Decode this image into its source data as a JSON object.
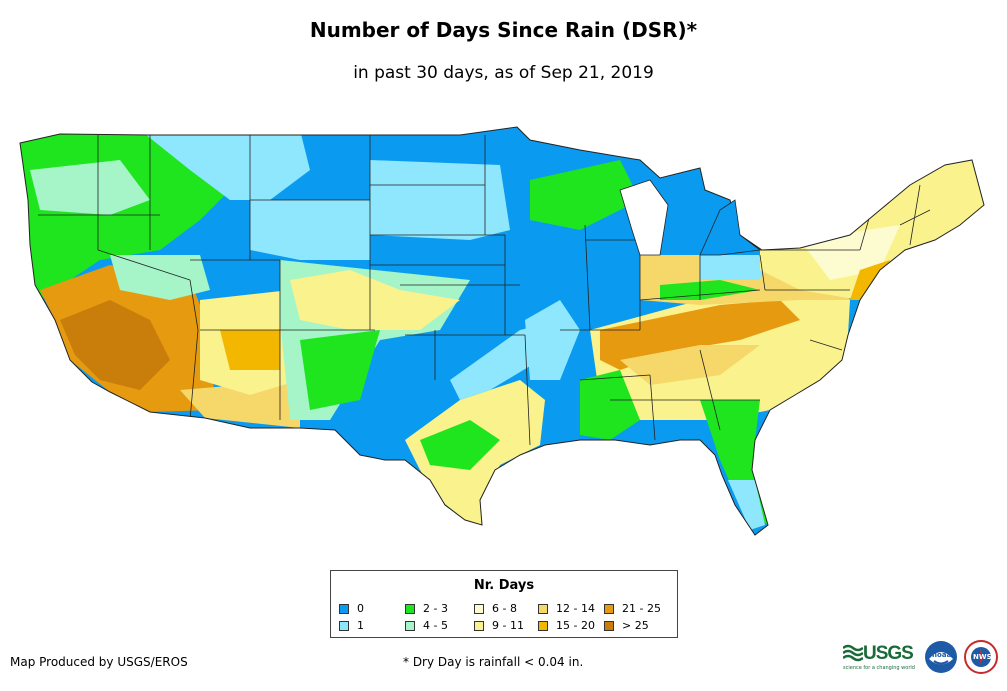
{
  "title": "Number of Days Since Rain (DSR)*",
  "subtitle": "in past 30 days, as of Sep 21, 2019",
  "legend": {
    "title": "Nr. Days",
    "items": [
      {
        "label": "0",
        "color": "#0a9bf0"
      },
      {
        "label": "1",
        "color": "#8fe7fd"
      },
      {
        "label": "2 - 3",
        "color": "#1ee51e"
      },
      {
        "label": "4 - 5",
        "color": "#a5f5c8"
      },
      {
        "label": "6 - 8",
        "color": "#fdfcd0"
      },
      {
        "label": "9 - 11",
        "color": "#faf28c"
      },
      {
        "label": "12 - 14",
        "color": "#f6d769"
      },
      {
        "label": "15 - 20",
        "color": "#f3b700"
      },
      {
        "label": "21 - 25",
        "color": "#e69a10"
      },
      {
        "label": "> 25",
        "color": "#c97d0a"
      }
    ]
  },
  "credit": "Map Produced by USGS/EROS",
  "note": "* Dry Day is rainfall < 0.04 in.",
  "logos": {
    "usgs": "USGS",
    "usgs_tagline": "science for a changing world",
    "noaa": "noaa",
    "nws": "NWS"
  }
}
